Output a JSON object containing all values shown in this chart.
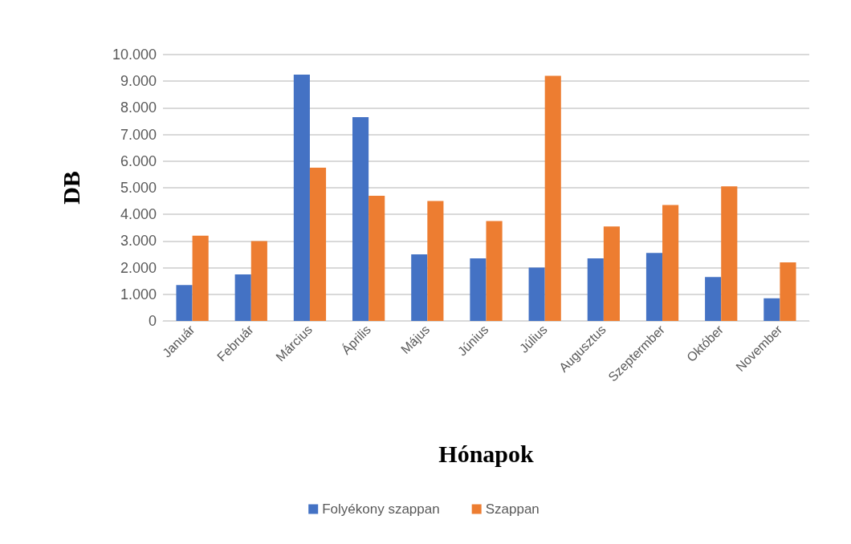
{
  "chart_data": {
    "type": "bar",
    "xlabel": "Hónapok",
    "ylabel": "DB",
    "categories": [
      "Január",
      "Február",
      "Március",
      "Április",
      "Május",
      "Június",
      "Július",
      "Augusztus",
      "Szeptermber",
      "Október",
      "November"
    ],
    "series": [
      {
        "name": "Folyékony szappan",
        "color": "#4472c4",
        "values": [
          1350,
          1750,
          9250,
          7650,
          2500,
          2350,
          2000,
          2350,
          2550,
          1650,
          850
        ]
      },
      {
        "name": "Szappan",
        "color": "#ed7d31",
        "values": [
          3200,
          3000,
          5750,
          4700,
          4500,
          3750,
          9200,
          3550,
          4350,
          5050,
          2200
        ]
      }
    ],
    "ylim": [
      0,
      10000
    ],
    "yticks": [
      0,
      {
        "value": 1000,
        "label": "1.000"
      },
      {
        "value": 2000,
        "label": "2.000"
      },
      {
        "value": 3000,
        "label": "3.000"
      },
      {
        "value": 4000,
        "label": "4.000"
      },
      {
        "value": 5000,
        "label": "5.000"
      },
      {
        "value": 6000,
        "label": "6.000"
      },
      {
        "value": 7000,
        "label": "7.000"
      },
      {
        "value": 8000,
        "label": "8.000"
      },
      {
        "value": 9000,
        "label": "9.000"
      },
      {
        "value": 10000,
        "label": "10.000"
      }
    ],
    "grid": "y",
    "legend": "bottom"
  }
}
